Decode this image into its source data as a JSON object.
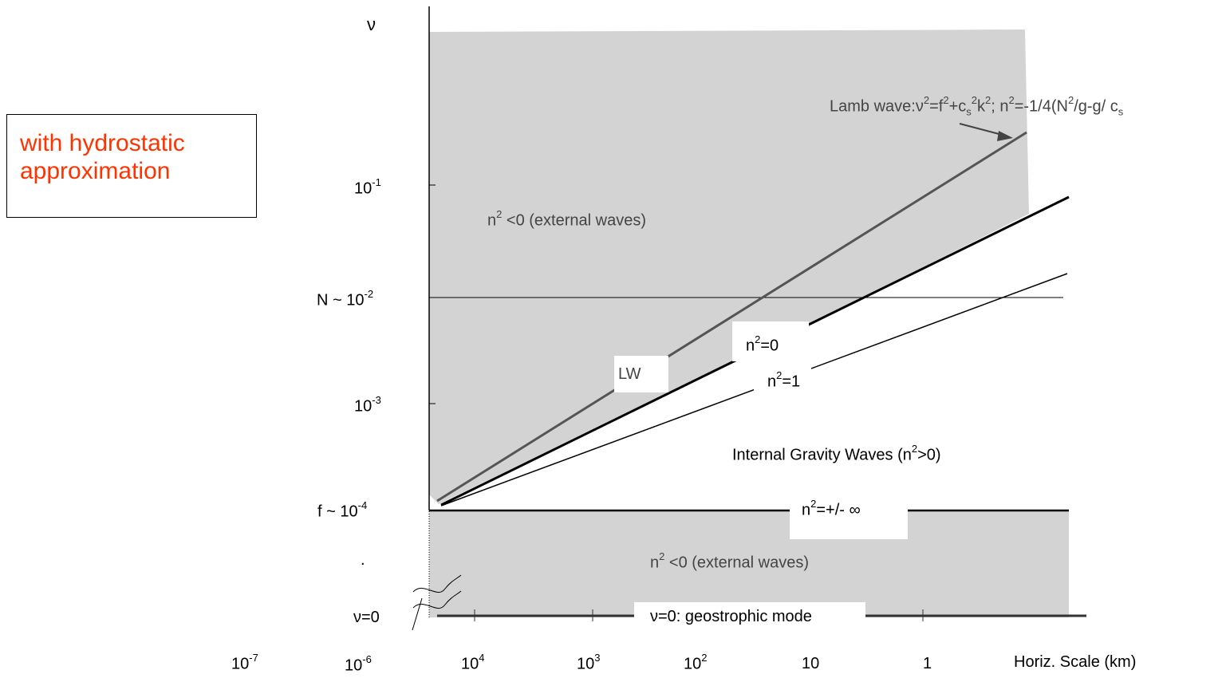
{
  "note": {
    "line1": "with hydrostatic",
    "line2": "approximation"
  },
  "colors": {
    "shade": "#d3d3d3",
    "note": "#ff3300",
    "lamb_line": "#555555"
  },
  "y_axis": {
    "symbol": "ν",
    "ticks": [
      {
        "base": "10",
        "exp": "-1"
      },
      {
        "base": "N ~ 10",
        "exp": "-2"
      },
      {
        "base": "10",
        "exp": "-3"
      },
      {
        "base": "f ~ 10",
        "exp": "-4"
      },
      {
        "base": ".",
        "exp": ""
      },
      {
        "base": "ν=0",
        "exp": ""
      }
    ]
  },
  "x_axis": {
    "title": "Horiz. Scale (km)",
    "ticks": [
      {
        "base": "10",
        "exp": "-7"
      },
      {
        "base": "10",
        "exp": "-6"
      },
      {
        "base": "10",
        "exp": "4"
      },
      {
        "base": "10",
        "exp": "3"
      },
      {
        "base": "10",
        "exp": "2"
      },
      {
        "base": "10",
        "exp": ""
      },
      {
        "base": "1",
        "exp": ""
      }
    ]
  },
  "labels": {
    "lamb_prefix": "Lamb wave:ν",
    "lamb_eq1": "=f",
    "lamb_eq2": "+c",
    "lamb_sub": "s",
    "lamb_eq3": "k",
    "lamb_eq4": "; n",
    "lamb_eq5": "=-1/4(N",
    "lamb_eq6": "/g-g/ c",
    "lamb_sub2": "s",
    "sq": "2",
    "upper_region_n": "n",
    "upper_region_rest": " <0 (external waves)",
    "lower_region_n": "n",
    "lower_region_rest": " <0 (external waves)",
    "n0_n": "n",
    "n0_rest": "=0",
    "n1_n": "n",
    "n1_rest": "=1",
    "lw": "LW",
    "igw_pre": "Internal Gravity Waves (n",
    "igw_post": ">0)",
    "ninf_n": "n",
    "ninf_rest": "=+/- ∞",
    "geo": "ν=0: geostrophic mode"
  }
}
